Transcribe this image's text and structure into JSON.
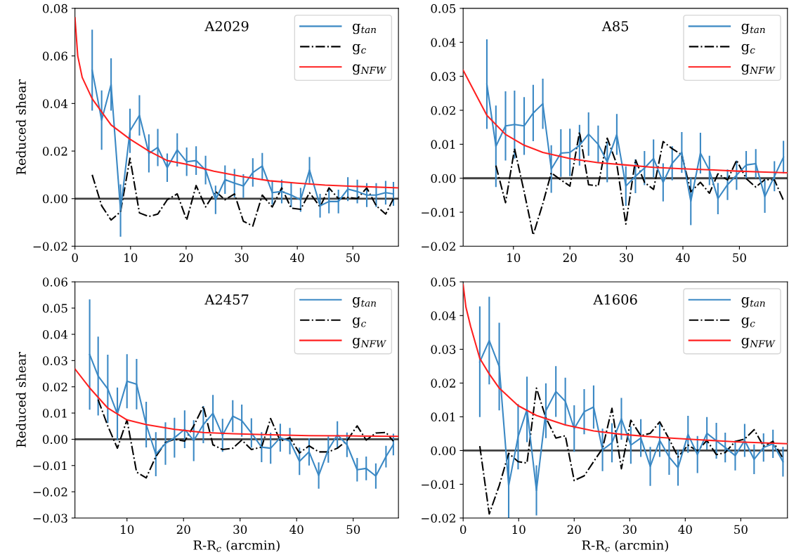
{
  "chart_data": [
    {
      "type": "line",
      "title": "A2029",
      "ylabel": "Reduced shear",
      "xlim": [
        0,
        58.2
      ],
      "ylim": [
        -0.02,
        0.08
      ],
      "xticks": [
        0,
        10,
        20,
        30,
        40,
        50
      ],
      "yticks": [
        {
          "value": -0.02,
          "label": "−0.02"
        },
        {
          "value": 0,
          "label": "0.00"
        },
        {
          "value": 0.02,
          "label": "0.02"
        },
        {
          "value": 0.04,
          "label": "0.04"
        },
        {
          "value": 0.06,
          "label": "0.06"
        },
        {
          "value": 0.08,
          "label": "0.08"
        }
      ],
      "legend": "top right",
      "grid": false,
      "ref_lines": [
        {
          "axis": "y",
          "value": 0,
          "color": "#404040"
        }
      ],
      "series": [
        {
          "name": "g$_{tan}$",
          "color": "#3a88c4",
          "line_style": "solid",
          "x": [
            3.1,
            4.8,
            6.5,
            8.2,
            9.9,
            11.6,
            13.3,
            14.9,
            16.6,
            18.4,
            20.1,
            21.8,
            23.5,
            25.3,
            27.0,
            28.7,
            30.3,
            32.0,
            33.7,
            35.5,
            37.2,
            38.9,
            40.6,
            42.2,
            44.1,
            45.7,
            47.4,
            49.1,
            50.8,
            52.5,
            54.2,
            55.9,
            57.3
          ],
          "values": [
            0.054,
            0.033,
            0.048,
            -0.005,
            0.0285,
            0.035,
            0.019,
            0.0215,
            0.013,
            0.0205,
            0.0155,
            0.016,
            0.012,
            -0.0005,
            0.008,
            0.0065,
            0.0053,
            0.011,
            0.0137,
            0.0025,
            0.003,
            0.0015,
            -0.0005,
            0.012,
            -0.003,
            -0.0012,
            -0.0012,
            0.004,
            0.003,
            0.0015,
            0.0015,
            0.0025,
            0.002
          ],
          "errors": [
            0.017,
            0.0125,
            0.011,
            0.011,
            0.0093,
            0.0085,
            0.008,
            0.0078,
            0.006,
            0.007,
            0.006,
            0.006,
            0.006,
            0.006,
            0.006,
            0.006,
            0.005,
            0.006,
            0.0055,
            0.005,
            0.005,
            0.005,
            0.005,
            0.0055,
            0.005,
            0.005,
            0.005,
            0.005,
            0.005,
            0.005,
            0.005,
            0.005,
            0.005
          ]
        },
        {
          "name": "g$_{c}$",
          "color": "#000000",
          "line_style": "dashdot",
          "x": [
            3.1,
            4.8,
            6.5,
            8.2,
            9.9,
            11.6,
            13.3,
            14.9,
            16.6,
            18.4,
            20.1,
            21.8,
            23.5,
            25.3,
            27.0,
            28.7,
            30.3,
            32.0,
            33.7,
            35.5,
            37.2,
            38.9,
            40.6,
            42.2,
            44.1,
            45.7,
            47.4,
            49.1,
            50.8,
            52.5,
            54.2,
            55.9,
            57.3
          ],
          "values": [
            0.01,
            -0.003,
            -0.009,
            -0.0055,
            0.017,
            -0.006,
            -0.0075,
            -0.0065,
            -0.0005,
            0.002,
            -0.009,
            0.0055,
            -0.0035,
            0.003,
            -0.0005,
            0.002,
            -0.0095,
            -0.0115,
            0.0015,
            -0.0035,
            0.0045,
            -0.004,
            -0.0045,
            0.0025,
            -0.0035,
            0.0045,
            0,
            0.0005,
            0,
            0.0045,
            -0.003,
            -0.0065,
            0
          ]
        },
        {
          "name": "g$_{NFW}$",
          "color": "#ff2020",
          "line_style": "solid",
          "x": [
            0,
            0.5,
            1.3,
            3.1,
            6.5,
            9.9,
            13.3,
            16.6,
            20,
            25,
            30,
            35,
            40,
            45,
            50,
            58.2
          ],
          "values": [
            0.076,
            0.06,
            0.051,
            0.042,
            0.031,
            0.025,
            0.02,
            0.016,
            0.0145,
            0.0115,
            0.0093,
            0.0075,
            0.0065,
            0.0057,
            0.0052,
            0.0045
          ]
        }
      ]
    },
    {
      "type": "line",
      "title": "A85",
      "xlim": [
        1.1,
        58.5
      ],
      "ylim": [
        -0.02,
        0.05
      ],
      "xticks": [
        10,
        20,
        30,
        40,
        50
      ],
      "yticks": [
        {
          "value": -0.02,
          "label": "−0.02"
        },
        {
          "value": -0.01,
          "label": "−0.01"
        },
        {
          "value": 0,
          "label": "0.00"
        },
        {
          "value": 0.01,
          "label": "0.01"
        },
        {
          "value": 0.02,
          "label": "0.02"
        },
        {
          "value": 0.03,
          "label": "0.03"
        },
        {
          "value": 0.04,
          "label": "0.04"
        },
        {
          "value": 0.05,
          "label": "0.05"
        }
      ],
      "legend": "top right",
      "grid": false,
      "ref_lines": [
        {
          "axis": "y",
          "value": 0,
          "color": "#404040"
        }
      ],
      "series": [
        {
          "name": "g$_{tan}$",
          "color": "#3a88c4",
          "line_style": "solid",
          "x": [
            5.3,
            6.9,
            8.6,
            10.2,
            11.9,
            13.5,
            15.2,
            16.7,
            18.4,
            20.0,
            21.7,
            23.3,
            25.0,
            26.6,
            28.3,
            29.9,
            31.6,
            33.2,
            34.8,
            36.5,
            38.1,
            39.8,
            41.4,
            43.1,
            44.7,
            46.2,
            47.9,
            49.5,
            51.2,
            52.9,
            54.5,
            56.2,
            57.8
          ],
          "values": [
            0.0277,
            0.0094,
            0.0154,
            0.0158,
            0.0154,
            0.0192,
            0.0219,
            0.0027,
            0.0074,
            0.0076,
            0.0097,
            0.013,
            0.01,
            0.0048,
            0.0129,
            -0.0023,
            0.0006,
            0.003,
            0.0058,
            -0.0012,
            0.0044,
            0.0076,
            -0.0068,
            0.0074,
            0.0023,
            -0.006,
            -0.0019,
            0.0009,
            0.0039,
            0.0043,
            -0.0054,
            0.0006,
            0.0062
          ],
          "errors": [
            0.0132,
            0.012,
            0.0102,
            0.01,
            0.0085,
            0.0083,
            0.0074,
            0.007,
            0.007,
            0.007,
            0.006,
            0.0064,
            0.0055,
            0.006,
            0.006,
            0.0058,
            0.005,
            0.005,
            0.0056,
            0.0056,
            0.005,
            0.006,
            0.007,
            0.006,
            0.0043,
            0.0046,
            0.0045,
            0.0043,
            0.0041,
            0.0043,
            0.0048,
            0.0044,
            0.0048
          ]
        },
        {
          "name": "g$_{c}$",
          "color": "#000000",
          "line_style": "dashdot",
          "x": [
            6.9,
            8.6,
            10.2,
            11.9,
            13.5,
            15.2,
            16.7,
            18.4,
            20.0,
            21.7,
            23.3,
            25.0,
            26.6,
            28.3,
            29.9,
            31.6,
            33.2,
            34.8,
            36.5,
            38.1,
            39.8,
            41.4,
            43.1,
            44.7,
            46.2,
            47.9,
            49.5,
            51.2,
            52.9,
            54.5,
            56.2,
            57.8
          ],
          "values": [
            0.0037,
            -0.0072,
            0.0087,
            -0.004,
            -0.0167,
            -0.0075,
            0.0016,
            -0.0005,
            -0.0023,
            0.0136,
            -0.0019,
            -0.0023,
            0.0118,
            0.0041,
            -0.0135,
            0.0055,
            -0.0012,
            -0.0033,
            0.0108,
            0.0087,
            0.0069,
            -0.004,
            -0.0012,
            -0.0044,
            0.0013,
            -0.0005,
            0.0053,
            -0.0001,
            -0.0026,
            -0.0004,
            -0.0005,
            -0.0065
          ]
        },
        {
          "name": "g$_{NFW}$",
          "color": "#ff2020",
          "line_style": "solid",
          "x": [
            1.1,
            5.3,
            8.6,
            11.9,
            15.2,
            20,
            24.9,
            29.9,
            34.8,
            39.8,
            44.7,
            49.6,
            54.5,
            58.5
          ],
          "values": [
            0.0318,
            0.0185,
            0.0129,
            0.0097,
            0.0076,
            0.0058,
            0.0046,
            0.0039,
            0.0032,
            0.0028,
            0.0025,
            0.0021,
            0.0018,
            0.0016
          ]
        }
      ]
    },
    {
      "type": "line",
      "title": "A2457",
      "ylabel": "Reduced shear",
      "xlabel": "R-R$_{c}$ (arcmin)",
      "xlim": [
        0.8,
        58.0
      ],
      "ylim": [
        -0.03,
        0.06
      ],
      "xticks": [
        10,
        20,
        30,
        40,
        50
      ],
      "yticks": [
        {
          "value": -0.03,
          "label": "−0.03"
        },
        {
          "value": -0.02,
          "label": "−0.02"
        },
        {
          "value": -0.01,
          "label": "−0.01"
        },
        {
          "value": 0,
          "label": "0.00"
        },
        {
          "value": 0.01,
          "label": "0.01"
        },
        {
          "value": 0.02,
          "label": "0.02"
        },
        {
          "value": 0.03,
          "label": "0.03"
        },
        {
          "value": 0.04,
          "label": "0.04"
        },
        {
          "value": 0.05,
          "label": "0.05"
        },
        {
          "value": 0.06,
          "label": "0.06"
        }
      ],
      "legend": "top right",
      "grid": false,
      "ref_lines": [
        {
          "axis": "y",
          "value": 0,
          "color": "#404040"
        }
      ],
      "series": [
        {
          "name": "g$_{tan}$",
          "color": "#3a88c4",
          "line_style": "solid",
          "x": [
            3.4,
            4.9,
            6.6,
            8.3,
            10.0,
            11.7,
            13.4,
            15.1,
            16.8,
            18.4,
            20.2,
            21.8,
            23.5,
            25.2,
            26.9,
            28.7,
            30.3,
            32.0,
            33.8,
            35.4,
            37.1,
            38.8,
            40.5,
            42.2,
            43.9,
            45.6,
            47.2,
            48.9,
            50.7,
            52.3,
            54.0,
            55.8,
            57.1
          ],
          "values": [
            0.0323,
            0.0241,
            0.0192,
            0.0097,
            0.0221,
            0.021,
            0.0056,
            -0.0057,
            -0.0016,
            0.0006,
            0.0038,
            -0.0005,
            0.0056,
            0.0099,
            0.0015,
            0.0088,
            0.0071,
            0.0024,
            -0.003,
            -0.0034,
            0.0006,
            -0.0007,
            -0.0084,
            -0.0048,
            -0.0138,
            -0.0039,
            0.0017,
            -0.0021,
            -0.0116,
            -0.0111,
            -0.014,
            -0.0066,
            -0.002
          ],
          "errors": [
            0.021,
            0.015,
            0.013,
            0.01,
            0.0103,
            0.0096,
            0.0087,
            0.0084,
            0.0081,
            0.0076,
            0.0072,
            0.0078,
            0.0071,
            0.007,
            0.0063,
            0.0061,
            0.0061,
            0.0056,
            0.0057,
            0.0059,
            0.0053,
            0.005,
            0.0052,
            0.0052,
            0.005,
            0.005,
            0.0052,
            0.0047,
            0.0045,
            0.0045,
            0.0048,
            0.0041,
            0.0041
          ]
        },
        {
          "name": "g$_{c}$",
          "color": "#000000",
          "line_style": "dashdot",
          "x": [
            4.9,
            6.6,
            8.3,
            10.0,
            11.7,
            13.4,
            15.1,
            16.8,
            18.4,
            20.2,
            21.8,
            23.5,
            25.2,
            26.9,
            28.7,
            30.3,
            32.0,
            33.8,
            35.4,
            37.1,
            38.8,
            40.5,
            42.2,
            43.9,
            45.6,
            47.2,
            48.9,
            50.7,
            52.3,
            54.0,
            55.8,
            57.1
          ],
          "values": [
            0.0151,
            0.0051,
            -0.0034,
            0.0074,
            -0.0125,
            -0.0147,
            -0.0066,
            -0.0012,
            0,
            -0.0007,
            0.0051,
            0.0126,
            -0.0021,
            -0.0039,
            -0.0034,
            -0.0003,
            -0.0039,
            -0.003,
            0.0079,
            -0.0007,
            0.0006,
            -0.0052,
            -0.0025,
            -0.0048,
            -0.0048,
            -0.0034,
            -0.0005,
            0.0051,
            -0.0003,
            0.0024,
            0.0026,
            -0.0007
          ]
        },
        {
          "name": "g$_{NFW}$",
          "color": "#ff2020",
          "line_style": "solid",
          "x": [
            0.8,
            3.4,
            6.6,
            10,
            13.4,
            18.4,
            23.5,
            28.7,
            35.4,
            42.2,
            48.9,
            58.0
          ],
          "values": [
            0.0268,
            0.0196,
            0.0119,
            0.0074,
            0.0056,
            0.0038,
            0.0026,
            0.0021,
            0.0017,
            0.0014,
            0.0013,
            0.0011
          ]
        }
      ]
    },
    {
      "type": "line",
      "title": "A1606",
      "xlabel": "R-R$_{c}$ (arcmin)",
      "xlim": [
        0,
        58.4
      ],
      "ylim": [
        -0.02,
        0.05
      ],
      "xticks": [
        0,
        10,
        20,
        30,
        40,
        50
      ],
      "yticks": [
        {
          "value": -0.02,
          "label": "−0.02"
        },
        {
          "value": -0.01,
          "label": "−0.01"
        },
        {
          "value": 0,
          "label": "0.00"
        },
        {
          "value": 0.01,
          "label": "0.01"
        },
        {
          "value": 0.02,
          "label": "0.02"
        },
        {
          "value": 0.03,
          "label": "0.03"
        },
        {
          "value": 0.04,
          "label": "0.04"
        },
        {
          "value": 0.05,
          "label": "0.05"
        }
      ],
      "legend": "top right",
      "grid": false,
      "ref_lines": [
        {
          "axis": "y",
          "value": 0,
          "color": "#404040"
        }
      ],
      "series": [
        {
          "name": "g$_{tan}$",
          "color": "#3a88c4",
          "line_style": "solid",
          "x": [
            3.0,
            4.7,
            6.5,
            8.2,
            9.9,
            11.5,
            13.2,
            14.9,
            16.7,
            18.4,
            20.0,
            21.8,
            23.5,
            25.1,
            26.8,
            28.5,
            30.2,
            32.0,
            33.7,
            35.4,
            37.1,
            38.7,
            40.5,
            42.2,
            43.9,
            45.6,
            47.2,
            49.0,
            50.7,
            52.4,
            54.1,
            55.8,
            57.6
          ],
          "values": [
            0.0263,
            0.0326,
            0.0249,
            -0.0104,
            0.0041,
            0.0122,
            -0.0118,
            0.0118,
            0.0175,
            0.0146,
            0.0065,
            0.0115,
            0.0129,
            0.0002,
            0.0023,
            0.0094,
            0.0016,
            0.0037,
            -0.0047,
            0.003,
            -0.0019,
            -0.0051,
            0.0048,
            -0.0012,
            0.0051,
            0.0029,
            0.0009,
            -0.0015,
            0.003,
            -0.0026,
            0.0009,
            0.002,
            -0.0033
          ],
          "errors": [
            0.0164,
            0.013,
            0.013,
            0.0096,
            0.0097,
            0.0097,
            0.0074,
            0.0081,
            0.0075,
            0.007,
            0.0069,
            0.0067,
            0.0064,
            0.0063,
            0.0058,
            0.0062,
            0.0055,
            0.0056,
            0.0058,
            0.0049,
            0.0053,
            0.0053,
            0.0055,
            0.0055,
            0.0048,
            0.0053,
            0.0044,
            0.0044,
            0.0049,
            0.0044,
            0.0042,
            0.0042,
            0.0044
          ]
        },
        {
          "name": "g$_{c}$",
          "color": "#000000",
          "line_style": "dashdot",
          "x": [
            3.0,
            4.7,
            6.5,
            8.2,
            9.9,
            11.5,
            13.2,
            14.9,
            16.7,
            18.4,
            20.0,
            21.8,
            23.5,
            25.1,
            26.8,
            28.5,
            30.2,
            32.0,
            33.7,
            35.4,
            37.1,
            38.7,
            40.5,
            42.2,
            43.9,
            45.6,
            47.2,
            49.0,
            50.7,
            52.4,
            54.1,
            55.8,
            57.6
          ],
          "values": [
            0.0013,
            -0.0188,
            -0.0104,
            -0.0008,
            -0.0033,
            -0.0037,
            0.0185,
            0.0097,
            0.0037,
            0.0044,
            -0.0089,
            -0.0075,
            -0.0033,
            0.0006,
            0.0125,
            -0.0054,
            0.009,
            0.0044,
            0.0051,
            0.0085,
            0.0034,
            -0.0019,
            0.0016,
            -0.0001,
            0.003,
            -0.0012,
            -0.0006,
            0.0027,
            0.0034,
            0.0062,
            0.0013,
            0.0027,
            -0.0023
          ]
        },
        {
          "name": "g$_{NFW}$",
          "color": "#ff2020",
          "line_style": "solid",
          "x": [
            0,
            0.5,
            1.35,
            3.0,
            4.7,
            6.5,
            9.9,
            13.2,
            18.4,
            23.5,
            28.5,
            35.4,
            42.2,
            49.0,
            58.4
          ],
          "values": [
            0.0492,
            0.0425,
            0.0368,
            0.0273,
            0.0227,
            0.0185,
            0.0133,
            0.0104,
            0.0076,
            0.0058,
            0.0048,
            0.0039,
            0.0032,
            0.0026,
            0.002
          ]
        }
      ]
    }
  ]
}
